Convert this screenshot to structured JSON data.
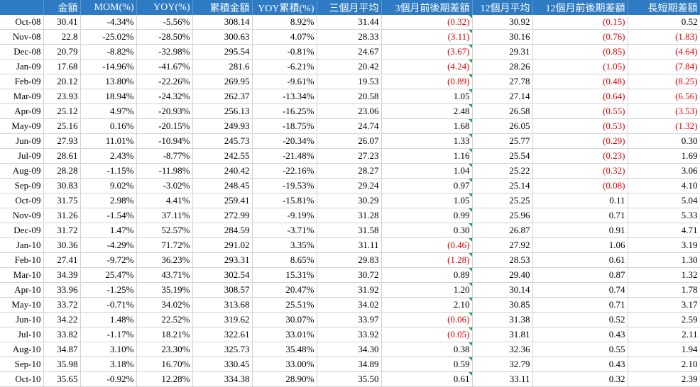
{
  "sheet": {
    "columns": [
      "",
      "金額",
      "MOM(%)",
      "YOY(%)",
      "累積金額",
      "YOY累積(%)",
      "三個月平均",
      "3個月前後期差額",
      "12個月平均",
      "12個月前後期差額",
      "長短期差額"
    ],
    "rows": [
      [
        "Oct-08",
        "30.41",
        "-4.34%",
        "-5.56%",
        "308.14",
        "8.92%",
        "31.44",
        "(0.32)",
        "30.92",
        "(0.15)",
        "0.52"
      ],
      [
        "Nov-08",
        "22.8",
        "-25.02%",
        "-28.50%",
        "300.63",
        "4.07%",
        "28.33",
        "(3.11)",
        "30.16",
        "(0.76)",
        "(1.83)"
      ],
      [
        "Dec-08",
        "20.79",
        "-8.82%",
        "-32.98%",
        "295.54",
        "-0.81%",
        "24.67",
        "(3.67)",
        "29.31",
        "(0.85)",
        "(4.64)"
      ],
      [
        "Jan-09",
        "17.68",
        "-14.96%",
        "-41.67%",
        "281.6",
        "-6.21%",
        "20.42",
        "(4.24)",
        "28.26",
        "(1.05)",
        "(7.84)"
      ],
      [
        "Feb-09",
        "20.12",
        "13.80%",
        "-22.26%",
        "269.95",
        "-9.61%",
        "19.53",
        "(0.89)",
        "27.78",
        "(0.48)",
        "(8.25)"
      ],
      [
        "Mar-09",
        "23.93",
        "18.94%",
        "-24.32%",
        "262.37",
        "-13.34%",
        "20.58",
        "1.05",
        "27.14",
        "(0.64)",
        "(6.56)"
      ],
      [
        "Apr-09",
        "25.12",
        "4.97%",
        "-20.93%",
        "256.13",
        "-16.25%",
        "23.06",
        "2.48",
        "26.58",
        "(0.55)",
        "(3.53)"
      ],
      [
        "May-09",
        "25.16",
        "0.16%",
        "-20.15%",
        "249.93",
        "-18.75%",
        "24.74",
        "1.68",
        "26.05",
        "(0.53)",
        "(1.32)"
      ],
      [
        "Jun-09",
        "27.93",
        "11.01%",
        "-10.94%",
        "245.73",
        "-20.34%",
        "26.07",
        "1.33",
        "25.77",
        "(0.29)",
        "0.30"
      ],
      [
        "Jul-09",
        "28.61",
        "2.43%",
        "-8.77%",
        "242.55",
        "-21.48%",
        "27.23",
        "1.16",
        "25.54",
        "(0.23)",
        "1.69"
      ],
      [
        "Aug-09",
        "28.28",
        "-1.15%",
        "-11.98%",
        "240.42",
        "-22.16%",
        "28.27",
        "1.04",
        "25.22",
        "(0.32)",
        "3.06"
      ],
      [
        "Sep-09",
        "30.83",
        "9.02%",
        "-3.02%",
        "248.45",
        "-19.53%",
        "29.24",
        "0.97",
        "25.14",
        "(0.08)",
        "4.10"
      ],
      [
        "Oct-09",
        "31.75",
        "2.98%",
        "4.41%",
        "259.41",
        "-15.81%",
        "30.29",
        "1.05",
        "25.25",
        "0.11",
        "5.04"
      ],
      [
        "Nov-09",
        "31.26",
        "-1.54%",
        "37.11%",
        "272.99",
        "-9.19%",
        "31.28",
        "0.99",
        "25.96",
        "0.71",
        "5.33"
      ],
      [
        "Dec-09",
        "31.72",
        "1.47%",
        "52.57%",
        "284.59",
        "-3.71%",
        "31.58",
        "0.30",
        "26.87",
        "0.91",
        "4.71"
      ],
      [
        "Jan-10",
        "30.36",
        "-4.29%",
        "71.72%",
        "291.02",
        "3.35%",
        "31.11",
        "(0.46)",
        "27.92",
        "1.06",
        "3.19"
      ],
      [
        "Feb-10",
        "27.41",
        "-9.72%",
        "36.23%",
        "293.31",
        "8.65%",
        "29.83",
        "(1.28)",
        "28.53",
        "0.61",
        "1.30"
      ],
      [
        "Mar-10",
        "34.39",
        "25.47%",
        "43.71%",
        "302.54",
        "15.31%",
        "30.72",
        "0.89",
        "29.40",
        "0.87",
        "1.32"
      ],
      [
        "Apr-10",
        "33.96",
        "-1.25%",
        "35.19%",
        "308.57",
        "20.47%",
        "31.92",
        "1.20",
        "30.14",
        "0.74",
        "1.78"
      ],
      [
        "May-10",
        "33.72",
        "-0.71%",
        "34.02%",
        "313.68",
        "25.51%",
        "34.02",
        "2.10",
        "30.85",
        "0.71",
        "3.17"
      ],
      [
        "Jun-10",
        "34.22",
        "1.48%",
        "22.52%",
        "319.62",
        "30.07%",
        "33.97",
        "(0.06)",
        "31.38",
        "0.52",
        "2.59"
      ],
      [
        "Jul-10",
        "33.82",
        "-1.17%",
        "18.21%",
        "322.61",
        "33.01%",
        "33.92",
        "(0.05)",
        "31.81",
        "0.43",
        "2.11"
      ],
      [
        "Aug-10",
        "34.87",
        "3.10%",
        "23.30%",
        "325.73",
        "35.48%",
        "34.30",
        "0.38",
        "32.36",
        "0.55",
        "1.94"
      ],
      [
        "Sep-10",
        "35.98",
        "3.18%",
        "16.70%",
        "330.45",
        "33.00%",
        "34.89",
        "0.59",
        "32.79",
        "0.43",
        "2.10"
      ],
      [
        "Oct-10",
        "35.65",
        "-0.92%",
        "12.28%",
        "334.38",
        "28.90%",
        "35.50",
        "0.61",
        "33.11",
        "0.32",
        "2.39"
      ]
    ],
    "colors": {
      "header_bg": "#2e7bc3",
      "header_text": "#ffffff",
      "negative_text": "#e00000",
      "comment_marker": "#1aa34a",
      "gridline": "#d3d3d3"
    }
  }
}
